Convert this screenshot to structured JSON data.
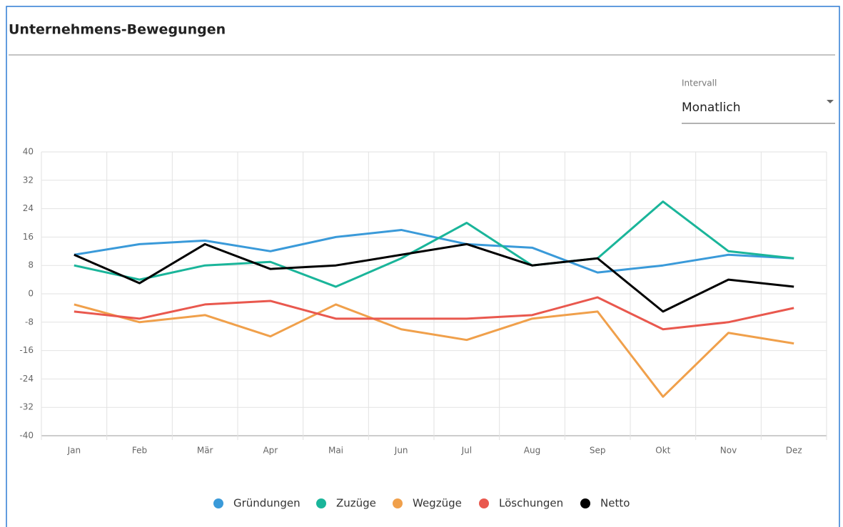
{
  "chart_data": {
    "type": "line",
    "title": "Unternehmens-Bewegungen",
    "categories": [
      "Jan",
      "Feb",
      "Mär",
      "Apr",
      "Mai",
      "Jun",
      "Jul",
      "Aug",
      "Sep",
      "Okt",
      "Nov",
      "Dez"
    ],
    "series": [
      {
        "name": "Gründungen",
        "color": "#3a9ad9",
        "values": [
          11,
          14,
          15,
          12,
          16,
          18,
          14,
          13,
          6,
          8,
          11,
          10
        ]
      },
      {
        "name": "Zuzüge",
        "color": "#1ab59a",
        "values": [
          8,
          4,
          8,
          9,
          2,
          10,
          20,
          8,
          10,
          26,
          12,
          10
        ]
      },
      {
        "name": "Wegzüge",
        "color": "#f0a04b",
        "values": [
          -3,
          -8,
          -6,
          -12,
          -3,
          -10,
          -13,
          -7,
          -5,
          -29,
          -11,
          -14
        ]
      },
      {
        "name": "Löschungen",
        "color": "#e9584e",
        "values": [
          -5,
          -7,
          -3,
          -2,
          -7,
          -7,
          -7,
          -6,
          -1,
          -10,
          -8,
          -4
        ]
      },
      {
        "name": "Netto",
        "color": "#000000",
        "values": [
          11,
          3,
          14,
          7,
          8,
          11,
          14,
          8,
          10,
          -5,
          4,
          2
        ]
      }
    ],
    "ylim": [
      -40,
      40
    ],
    "yticks": [
      -40,
      -32,
      -24,
      -16,
      -8,
      0,
      8,
      16,
      24,
      32,
      40
    ],
    "grid": true,
    "legend": "bottom"
  },
  "interval": {
    "label": "Intervall",
    "value": "Monatlich"
  }
}
